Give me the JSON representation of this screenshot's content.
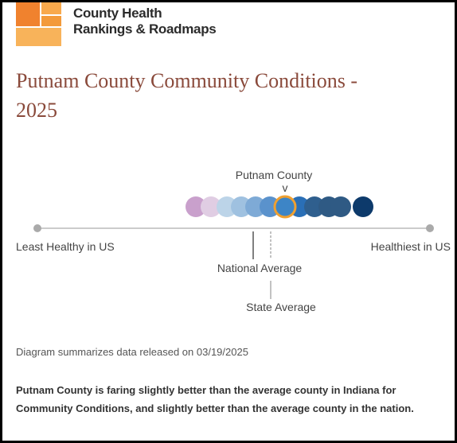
{
  "header": {
    "brand_line1": "County Health",
    "brand_line2": "Rankings & Roadmaps"
  },
  "title_line1": "Putnam County Community Conditions -",
  "title_line2": "2025",
  "diagram": {
    "county_label": "Putnam County",
    "marker": "v",
    "left_label": "Least Healthy in US",
    "right_label": "Healthiest in US",
    "national_label": "National Average",
    "state_label": "State Average"
  },
  "note": "Diagram summarizes data released on 03/19/2025",
  "summary": "Putnam County is faring slightly better than the average county in Indiana for Community Conditions, and slightly better than the average county in the nation."
}
